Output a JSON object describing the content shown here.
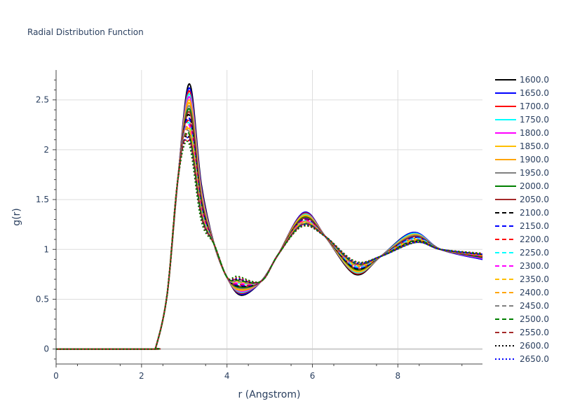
{
  "chart_data": {
    "type": "line",
    "title": "Radial Distribution Function",
    "xlabel": "r (Angstrom)",
    "ylabel": "g(r)",
    "xlim": [
      0,
      9.98
    ],
    "ylim": [
      -0.15,
      2.8
    ],
    "xticks": [
      0,
      2,
      4,
      6,
      8
    ],
    "xtick_labels": [
      "0",
      "2",
      "4",
      "6",
      "8"
    ],
    "yticks": [
      0,
      0.5,
      1,
      1.5,
      2,
      2.5
    ],
    "ytick_labels": [
      "0",
      "0.5",
      "1",
      "1.5",
      "2",
      "2.5"
    ],
    "grid": true,
    "legend_position": "right",
    "series": [
      {
        "name": "1600.0",
        "color": "#000000",
        "dash": "solid",
        "peak1": [
          3.12,
          2.66
        ],
        "min1": [
          4.33,
          0.54
        ],
        "peak2": [
          5.8,
          1.37
        ],
        "min2": [
          7.0,
          0.75
        ],
        "peak3": [
          8.35,
          1.17
        ],
        "end": [
          9.98,
          0.9
        ]
      },
      {
        "name": "1650.0",
        "color": "#0000ff",
        "dash": "solid",
        "peak1": [
          3.12,
          2.62
        ],
        "min1": [
          4.33,
          0.55
        ],
        "peak2": [
          5.8,
          1.37
        ],
        "min2": [
          7.0,
          0.76
        ],
        "peak3": [
          8.36,
          1.17
        ],
        "end": [
          9.98,
          0.9
        ]
      },
      {
        "name": "1700.0",
        "color": "#ff0000",
        "dash": "solid",
        "peak1": [
          3.12,
          2.59
        ],
        "min1": [
          4.32,
          0.56
        ],
        "peak2": [
          5.8,
          1.36
        ],
        "min2": [
          7.0,
          0.76
        ],
        "peak3": [
          8.36,
          1.16
        ],
        "end": [
          9.98,
          0.91
        ]
      },
      {
        "name": "1750.0",
        "color": "#00ffff",
        "dash": "solid",
        "peak1": [
          3.12,
          2.56
        ],
        "min1": [
          4.32,
          0.57
        ],
        "peak2": [
          5.8,
          1.35
        ],
        "min2": [
          7.0,
          0.77
        ],
        "peak3": [
          8.36,
          1.16
        ],
        "end": [
          9.98,
          0.91
        ]
      },
      {
        "name": "1800.0",
        "color": "#ff00ff",
        "dash": "solid",
        "peak1": [
          3.12,
          2.53
        ],
        "min1": [
          4.32,
          0.58
        ],
        "peak2": [
          5.8,
          1.34
        ],
        "min2": [
          7.0,
          0.78
        ],
        "peak3": [
          8.37,
          1.15
        ],
        "end": [
          9.98,
          0.91
        ]
      },
      {
        "name": "1850.0",
        "color": "#ffbf00",
        "dash": "solid",
        "peak1": [
          3.12,
          2.5
        ],
        "min1": [
          4.31,
          0.59
        ],
        "peak2": [
          5.79,
          1.34
        ],
        "min2": [
          7.0,
          0.78
        ],
        "peak3": [
          8.37,
          1.15
        ],
        "end": [
          9.98,
          0.92
        ]
      },
      {
        "name": "1900.0",
        "color": "#ffa500",
        "dash": "solid",
        "peak1": [
          3.12,
          2.47
        ],
        "min1": [
          4.31,
          0.6
        ],
        "peak2": [
          5.79,
          1.33
        ],
        "min2": [
          7.0,
          0.79
        ],
        "peak3": [
          8.37,
          1.14
        ],
        "end": [
          9.98,
          0.92
        ]
      },
      {
        "name": "1950.0",
        "color": "#808080",
        "dash": "solid",
        "peak1": [
          3.12,
          2.44
        ],
        "min1": [
          4.31,
          0.61
        ],
        "peak2": [
          5.79,
          1.32
        ],
        "min2": [
          7.0,
          0.8
        ],
        "peak3": [
          8.38,
          1.14
        ],
        "end": [
          9.98,
          0.92
        ]
      },
      {
        "name": "2000.0",
        "color": "#008000",
        "dash": "solid",
        "peak1": [
          3.12,
          2.41
        ],
        "min1": [
          4.3,
          0.62
        ],
        "peak2": [
          5.79,
          1.32
        ],
        "min2": [
          7.0,
          0.8
        ],
        "peak3": [
          8.38,
          1.13
        ],
        "end": [
          9.98,
          0.92
        ]
      },
      {
        "name": "2050.0",
        "color": "#a52a2a",
        "dash": "solid",
        "peak1": [
          3.12,
          2.38
        ],
        "min1": [
          4.3,
          0.63
        ],
        "peak2": [
          5.79,
          1.31
        ],
        "min2": [
          7.0,
          0.81
        ],
        "peak3": [
          8.38,
          1.13
        ],
        "end": [
          9.98,
          0.93
        ]
      },
      {
        "name": "2100.0",
        "color": "#000000",
        "dash": "dash",
        "peak1": [
          3.11,
          2.35
        ],
        "min1": [
          4.3,
          0.63
        ],
        "peak2": [
          5.78,
          1.3
        ],
        "min2": [
          7.0,
          0.81
        ],
        "peak3": [
          8.39,
          1.12
        ],
        "end": [
          9.98,
          0.93
        ]
      },
      {
        "name": "2150.0",
        "color": "#0000ff",
        "dash": "dash",
        "peak1": [
          3.11,
          2.32
        ],
        "min1": [
          4.29,
          0.64
        ],
        "peak2": [
          5.78,
          1.3
        ],
        "min2": [
          7.0,
          0.82
        ],
        "peak3": [
          8.39,
          1.12
        ],
        "end": [
          9.98,
          0.93
        ]
      },
      {
        "name": "2200.0",
        "color": "#ff0000",
        "dash": "dash",
        "peak1": [
          3.11,
          2.29
        ],
        "min1": [
          4.29,
          0.65
        ],
        "peak2": [
          5.78,
          1.29
        ],
        "min2": [
          7.0,
          0.83
        ],
        "peak3": [
          8.39,
          1.11
        ],
        "end": [
          9.98,
          0.93
        ]
      },
      {
        "name": "2250.0",
        "color": "#00ffff",
        "dash": "dash",
        "peak1": [
          3.11,
          2.27
        ],
        "min1": [
          4.29,
          0.66
        ],
        "peak2": [
          5.78,
          1.28
        ],
        "min2": [
          7.0,
          0.83
        ],
        "peak3": [
          8.4,
          1.11
        ],
        "end": [
          9.98,
          0.94
        ]
      },
      {
        "name": "2300.0",
        "color": "#ff00ff",
        "dash": "dash",
        "peak1": [
          3.11,
          2.25
        ],
        "min1": [
          4.28,
          0.66
        ],
        "peak2": [
          5.78,
          1.28
        ],
        "min2": [
          7.0,
          0.84
        ],
        "peak3": [
          8.4,
          1.1
        ],
        "end": [
          9.98,
          0.94
        ]
      },
      {
        "name": "2350.0",
        "color": "#ffbf00",
        "dash": "dash",
        "peak1": [
          3.11,
          2.23
        ],
        "min1": [
          4.28,
          0.67
        ],
        "peak2": [
          5.77,
          1.27
        ],
        "min2": [
          7.0,
          0.84
        ],
        "peak3": [
          8.4,
          1.1
        ],
        "end": [
          9.98,
          0.94
        ]
      },
      {
        "name": "2400.0",
        "color": "#ffa500",
        "dash": "dash",
        "peak1": [
          3.11,
          2.21
        ],
        "min1": [
          4.28,
          0.68
        ],
        "peak2": [
          5.77,
          1.27
        ],
        "min2": [
          7.0,
          0.85
        ],
        "peak3": [
          8.41,
          1.09
        ],
        "end": [
          9.98,
          0.94
        ]
      },
      {
        "name": "2450.0",
        "color": "#808080",
        "dash": "dash",
        "peak1": [
          3.1,
          2.19
        ],
        "min1": [
          4.27,
          0.68
        ],
        "peak2": [
          5.77,
          1.26
        ],
        "min2": [
          7.0,
          0.85
        ],
        "peak3": [
          8.41,
          1.09
        ],
        "end": [
          9.98,
          0.95
        ]
      },
      {
        "name": "2500.0",
        "color": "#008000",
        "dash": "dash",
        "peak1": [
          3.1,
          2.17
        ],
        "min1": [
          4.27,
          0.69
        ],
        "peak2": [
          5.77,
          1.25
        ],
        "min2": [
          7.0,
          0.86
        ],
        "peak3": [
          8.41,
          1.09
        ],
        "end": [
          9.98,
          0.95
        ]
      },
      {
        "name": "2550.0",
        "color": "#a52a2a",
        "dash": "dash",
        "peak1": [
          3.1,
          2.15
        ],
        "min1": [
          4.27,
          0.7
        ],
        "peak2": [
          5.77,
          1.25
        ],
        "min2": [
          7.0,
          0.86
        ],
        "peak3": [
          8.42,
          1.08
        ],
        "end": [
          9.98,
          0.95
        ]
      },
      {
        "name": "2600.0",
        "color": "#000000",
        "dash": "dot",
        "peak1": [
          3.1,
          2.13
        ],
        "min1": [
          4.26,
          0.7
        ],
        "peak2": [
          5.76,
          1.24
        ],
        "min2": [
          7.0,
          0.87
        ],
        "peak3": [
          8.42,
          1.08
        ],
        "end": [
          9.98,
          0.95
        ]
      },
      {
        "name": "2650.0",
        "color": "#0000ff",
        "dash": "dot",
        "peak1": [
          3.1,
          2.11
        ],
        "min1": [
          4.26,
          0.71
        ],
        "peak2": [
          5.76,
          1.24
        ],
        "min2": [
          7.0,
          0.87
        ],
        "peak3": [
          8.42,
          1.07
        ],
        "end": [
          9.98,
          0.95
        ]
      },
      {
        "name": "",
        "color": "#ff0000",
        "dash": "dot",
        "peak1": [
          3.1,
          2.09
        ],
        "min1": [
          4.26,
          0.72
        ],
        "peak2": [
          5.76,
          1.23
        ],
        "min2": [
          7.0,
          0.88
        ],
        "peak3": [
          8.43,
          1.07
        ],
        "end": [
          9.98,
          0.96
        ]
      },
      {
        "name": "",
        "color": "#008000",
        "dash": "dot",
        "peak1": [
          3.1,
          2.07
        ],
        "min1": [
          4.25,
          0.73
        ],
        "peak2": [
          5.76,
          1.23
        ],
        "min2": [
          7.0,
          0.88
        ],
        "peak3": [
          8.43,
          1.07
        ],
        "end": [
          9.98,
          0.96
        ]
      }
    ]
  }
}
